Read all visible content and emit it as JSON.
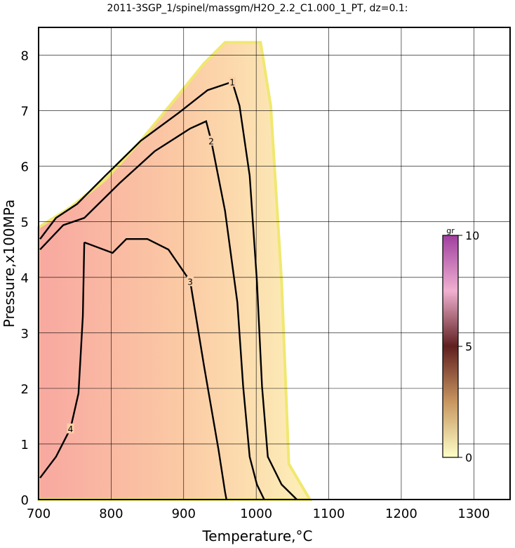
{
  "chart_data": {
    "type": "contour",
    "title": "2011-3SGP_1/spinel/massgm/H2O_2.2_C1.000_1_PT, dz=0.1:",
    "x_label": "Temperature,°C",
    "y_label": "Pressure,x100MPa",
    "xlim": [
      700,
      1350
    ],
    "xticks": [
      700,
      800,
      900,
      1000,
      1100,
      1200,
      1300
    ],
    "ylim": [
      0,
      8.5
    ],
    "yticks": [
      0,
      1,
      2,
      3,
      4,
      5,
      6,
      7,
      8
    ],
    "grid": true,
    "field": {
      "x": [
        700,
        700,
        705,
        744,
        792,
        841,
        889,
        928,
        957,
        1006,
        1020,
        1035,
        1045,
        1074
      ],
      "y": [
        0,
        4.9,
        4.94,
        5.26,
        5.76,
        6.46,
        7.22,
        7.85,
        8.23,
        8.23,
        7.09,
        3.93,
        0.64,
        0
      ]
    },
    "contours": [
      {
        "level": 1,
        "x": [
          702,
          724,
          753,
          792,
          841,
          894,
          933,
          967,
          977,
          991,
          1001,
          1008,
          1016,
          1035,
          1056
        ],
        "y": [
          4.69,
          5.07,
          5.32,
          5.83,
          6.46,
          6.97,
          7.37,
          7.52,
          7.09,
          5.83,
          3.93,
          2.04,
          0.77,
          0.27,
          0
        ]
      },
      {
        "level": 2,
        "x": [
          702,
          734,
          763,
          812,
          860,
          909,
          931,
          938,
          957,
          974,
          982,
          991,
          1001,
          1011
        ],
        "y": [
          4.5,
          4.94,
          5.07,
          5.7,
          6.27,
          6.68,
          6.81,
          6.46,
          5.2,
          3.55,
          2.04,
          0.77,
          0.27,
          0
        ]
      },
      {
        "level": 3,
        "x": [
          763,
          802,
          821,
          850,
          879,
          909,
          928,
          948,
          957,
          959
        ],
        "y": [
          4.63,
          4.44,
          4.69,
          4.69,
          4.5,
          3.93,
          2.41,
          0.9,
          0.14,
          0
        ]
      },
      {
        "level": 4,
        "x": [
          763,
          761,
          755,
          744,
          724,
          702
        ],
        "y": [
          4.63,
          3.3,
          1.91,
          1.28,
          0.77,
          0.39
        ]
      }
    ],
    "colorbar": {
      "label": "gr",
      "lim": [
        0,
        10
      ],
      "ticks": [
        0,
        5,
        10
      ],
      "colors": [
        "#ffffc8",
        "#c89660",
        "#602020",
        "#f0b0d0",
        "#a040a0"
      ]
    }
  }
}
